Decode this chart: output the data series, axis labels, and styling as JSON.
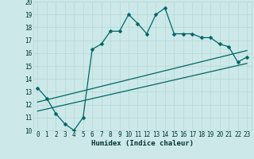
{
  "xlabel": "Humidex (Indice chaleur)",
  "bg_color": "#cce8e8",
  "line_color": "#006666",
  "grid_color": "#b8d8d8",
  "xlim": [
    -0.5,
    23.5
  ],
  "ylim": [
    10,
    20
  ],
  "xticks": [
    0,
    1,
    2,
    3,
    4,
    5,
    6,
    7,
    8,
    9,
    10,
    11,
    12,
    13,
    14,
    15,
    16,
    17,
    18,
    19,
    20,
    21,
    22,
    23
  ],
  "yticks": [
    10,
    11,
    12,
    13,
    14,
    15,
    16,
    17,
    18,
    19,
    20
  ],
  "main_x": [
    0,
    1,
    2,
    3,
    4,
    5,
    6,
    7,
    8,
    9,
    10,
    11,
    12,
    13,
    14,
    15,
    16,
    17,
    18,
    19,
    20,
    21,
    22,
    23
  ],
  "main_y": [
    13.3,
    12.5,
    11.3,
    10.5,
    10.0,
    11.0,
    16.3,
    16.7,
    17.7,
    17.7,
    19.0,
    18.3,
    17.5,
    19.0,
    19.5,
    17.5,
    17.5,
    17.5,
    17.2,
    17.2,
    16.7,
    16.5,
    15.3,
    15.7
  ],
  "line1_x": [
    0,
    23
  ],
  "line1_y": [
    12.2,
    16.2
  ],
  "line2_x": [
    0,
    23
  ],
  "line2_y": [
    11.5,
    15.2
  ],
  "marker_size": 2.5,
  "linewidth": 0.9,
  "tick_fontsize": 5.5,
  "xlabel_fontsize": 6.5
}
